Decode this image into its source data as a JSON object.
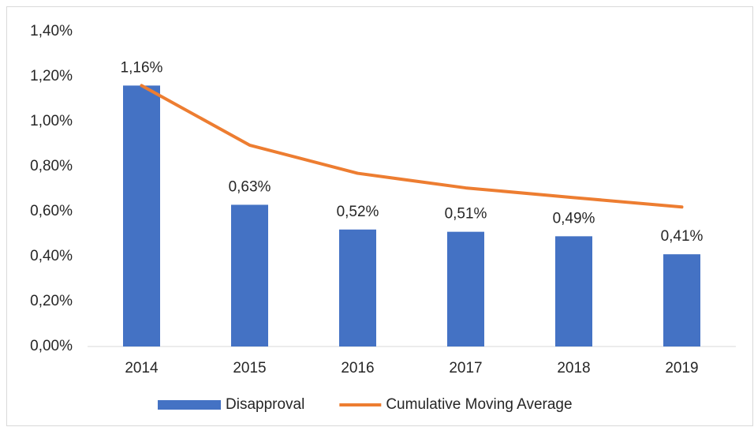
{
  "chart_data": {
    "type": "combo",
    "categories": [
      "2014",
      "2015",
      "2016",
      "2017",
      "2018",
      "2019"
    ],
    "series": [
      {
        "name": "Disapproval",
        "type": "bar",
        "color": "#4472c4",
        "values": [
          1.16,
          0.63,
          0.52,
          0.51,
          0.49,
          0.41
        ],
        "value_labels": [
          "1,16%",
          "0,63%",
          "0,52%",
          "0,51%",
          "0,49%",
          "0,41%"
        ]
      },
      {
        "name": "Cumulative Moving Average",
        "type": "line",
        "color": "#ed7d31",
        "values": [
          1.16,
          0.895,
          0.77,
          0.705,
          0.662,
          0.62
        ]
      }
    ],
    "ylim": [
      0,
      1.4
    ],
    "yticks": [
      {
        "value": 0,
        "label": "0,00%"
      },
      {
        "value": 0.2,
        "label": "0,20%"
      },
      {
        "value": 0.4,
        "label": "0,40%"
      },
      {
        "value": 0.6,
        "label": "0,60%"
      },
      {
        "value": 0.8,
        "label": "0,80%"
      },
      {
        "value": 1.0,
        "label": "1,00%"
      },
      {
        "value": 1.2,
        "label": "1,20%"
      },
      {
        "value": 1.4,
        "label": "1,40%"
      }
    ],
    "grid": false,
    "legend": "bottom"
  }
}
